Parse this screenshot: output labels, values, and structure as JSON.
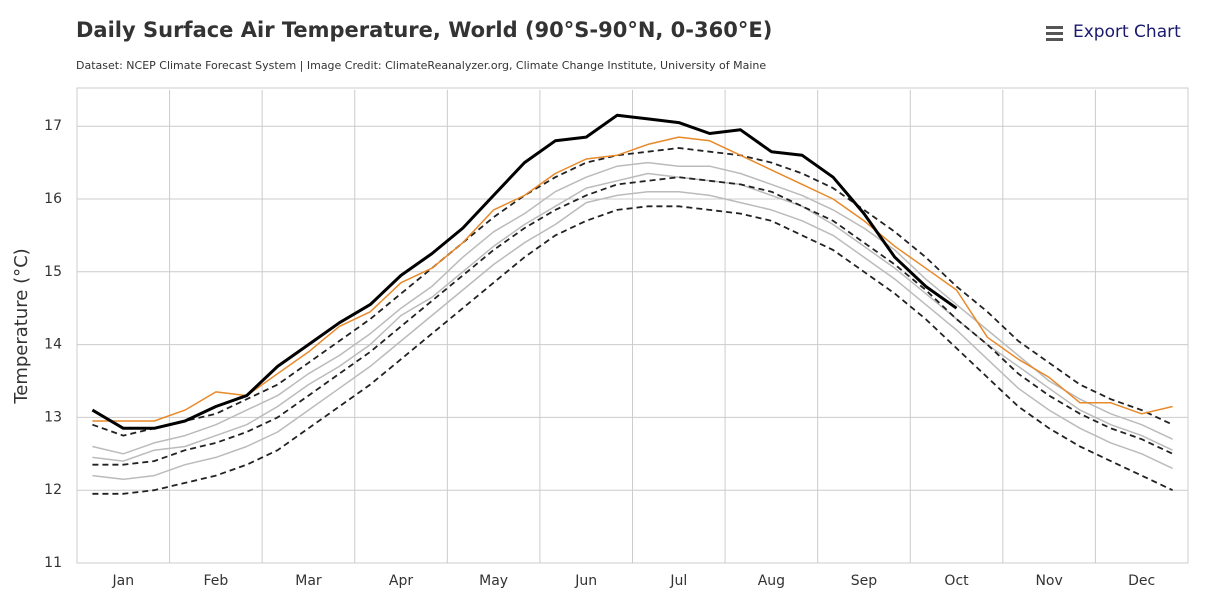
{
  "toolbar": {
    "export": "Export Chart"
  },
  "chart_data": {
    "type": "line",
    "title": "Daily Surface Air Temperature, World (90°S-90°N, 0-360°E)",
    "subtitle": "Dataset: NCEP Climate Forecast System | Image Credit: ClimateReanalyzer.org, Climate Change Institute, University of Maine",
    "y_label": "Temperature (°C)",
    "categories": [
      null,
      "Jan",
      null,
      null,
      "Feb",
      null,
      null,
      "Mar",
      null,
      null,
      "Apr",
      null,
      null,
      "May",
      null,
      null,
      "Jun",
      null,
      null,
      "Jul",
      null,
      null,
      "Aug",
      null,
      null,
      "Sep",
      null,
      null,
      "Oct",
      null,
      null,
      "Nov",
      null,
      null,
      "Dec",
      null
    ],
    "ylim": [
      11,
      17.5
    ],
    "yticks": [
      11,
      12,
      13,
      14,
      15,
      16,
      17
    ],
    "grid": true,
    "series": [
      {
        "color": "#bbbbbb",
        "style": "solid",
        "values": [
          12.6,
          12.5,
          12.65,
          12.75,
          12.9,
          13.1,
          13.3,
          13.6,
          13.85,
          14.15,
          14.5,
          14.8,
          15.2,
          15.55,
          15.8,
          16.1,
          16.3,
          16.45,
          16.5,
          16.45,
          16.45,
          16.35,
          16.2,
          16.05,
          15.85,
          15.6,
          15.3,
          14.9,
          14.55,
          14.2,
          13.85,
          13.5,
          13.25,
          13.05,
          12.9,
          12.7
        ]
      },
      {
        "color": "#bbbbbb",
        "style": "solid",
        "values": [
          12.2,
          12.15,
          12.2,
          12.35,
          12.45,
          12.6,
          12.8,
          13.1,
          13.4,
          13.7,
          14.05,
          14.4,
          14.75,
          15.1,
          15.4,
          15.65,
          15.95,
          16.05,
          16.1,
          16.1,
          16.05,
          15.95,
          15.85,
          15.7,
          15.5,
          15.2,
          14.9,
          14.55,
          14.2,
          13.8,
          13.4,
          13.1,
          12.85,
          12.65,
          12.5,
          12.3
        ]
      },
      {
        "color": "#bbbbbb",
        "style": "solid",
        "values": [
          12.45,
          12.4,
          12.55,
          12.6,
          12.75,
          12.9,
          13.15,
          13.45,
          13.7,
          14.0,
          14.4,
          14.65,
          15.0,
          15.35,
          15.65,
          15.9,
          16.15,
          16.25,
          16.35,
          16.3,
          16.25,
          16.2,
          16.05,
          15.9,
          15.65,
          15.35,
          15.05,
          14.7,
          14.35,
          14.0,
          13.7,
          13.4,
          13.1,
          12.9,
          12.75,
          12.55
        ]
      },
      {
        "color": "#222222",
        "style": "dashed",
        "values": [
          12.9,
          12.75,
          12.85,
          12.95,
          13.05,
          13.25,
          13.45,
          13.75,
          14.05,
          14.35,
          14.7,
          15.05,
          15.4,
          15.75,
          16.05,
          16.3,
          16.5,
          16.6,
          16.65,
          16.7,
          16.65,
          16.6,
          16.5,
          16.35,
          16.15,
          15.85,
          15.55,
          15.2,
          14.8,
          14.45,
          14.05,
          13.75,
          13.45,
          13.25,
          13.1,
          12.9
        ]
      },
      {
        "color": "#222222",
        "style": "dashed",
        "values": [
          12.35,
          12.35,
          12.4,
          12.55,
          12.65,
          12.8,
          13.0,
          13.3,
          13.6,
          13.9,
          14.25,
          14.6,
          14.95,
          15.3,
          15.6,
          15.85,
          16.05,
          16.2,
          16.25,
          16.3,
          16.25,
          16.2,
          16.1,
          15.9,
          15.7,
          15.4,
          15.1,
          14.75,
          14.35,
          14.0,
          13.6,
          13.3,
          13.05,
          12.85,
          12.7,
          12.5
        ]
      },
      {
        "color": "#222222",
        "style": "dashed",
        "values": [
          11.95,
          11.95,
          12.0,
          12.1,
          12.2,
          12.35,
          12.55,
          12.85,
          13.15,
          13.45,
          13.8,
          14.15,
          14.5,
          14.85,
          15.2,
          15.5,
          15.7,
          15.85,
          15.9,
          15.9,
          15.85,
          15.8,
          15.7,
          15.5,
          15.3,
          15.0,
          14.7,
          14.35,
          13.95,
          13.55,
          13.15,
          12.85,
          12.6,
          12.4,
          12.2,
          12.0
        ]
      },
      {
        "color": "#e8892a",
        "style": "solid",
        "values": [
          12.95,
          12.95,
          12.95,
          13.1,
          13.35,
          13.3,
          13.6,
          13.9,
          14.25,
          14.45,
          14.85,
          15.05,
          15.4,
          15.85,
          16.05,
          16.35,
          16.55,
          16.6,
          16.75,
          16.85,
          16.8,
          16.6,
          16.4,
          16.2,
          16.0,
          15.7,
          15.35,
          15.05,
          14.75,
          14.1,
          13.8,
          13.55,
          13.2,
          13.2,
          13.05,
          13.15
        ]
      },
      {
        "color": "#000000",
        "style": "bold",
        "values": [
          13.1,
          12.85,
          12.85,
          12.95,
          13.15,
          13.3,
          13.7,
          14.0,
          14.3,
          14.55,
          14.95,
          15.25,
          15.6,
          16.05,
          16.5,
          16.8,
          16.85,
          17.15,
          17.1,
          17.05,
          16.9,
          16.95,
          16.65,
          16.6,
          16.3,
          15.8,
          15.2,
          14.8,
          14.5,
          null,
          null,
          null,
          null,
          null,
          null,
          null
        ]
      }
    ]
  }
}
